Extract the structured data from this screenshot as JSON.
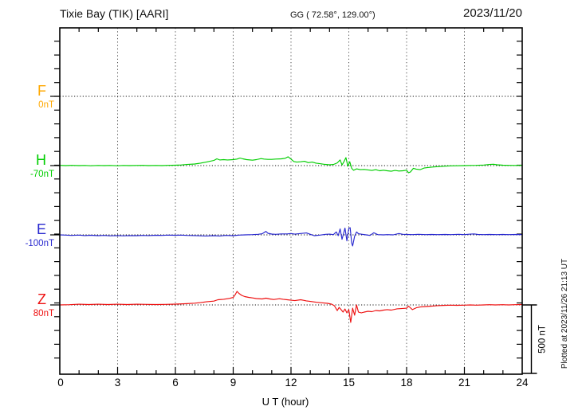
{
  "header": {
    "station_title": "Tixie Bay (TIK)  [AARI]",
    "coordinates": "GG ( 72.58°, 129.00°)",
    "date": "2023/11/20"
  },
  "components": [
    {
      "label": "F",
      "baseline_label": "0nT",
      "color": "#FFA800"
    },
    {
      "label": "H",
      "baseline_label": "-70nT",
      "color": "#00CE00"
    },
    {
      "label": "E",
      "baseline_label": "-100nT",
      "color": "#2828CF"
    },
    {
      "label": "Z",
      "baseline_label": "80nT",
      "color": "#EE1010"
    }
  ],
  "x_axis": {
    "label": "U T (hour)",
    "tick_labels": [
      "0",
      "3",
      "6",
      "9",
      "12",
      "15",
      "18",
      "21",
      "24"
    ]
  },
  "scale_bar": {
    "label": "500 nT"
  },
  "footer_note": "Plotted at 2023/11/26 21:13 UT",
  "chart_data": {
    "type": "line",
    "title": "Tixie Bay (TIK) [AARI] magnetogram 2023/11/20",
    "xlabel": "U T (hour)",
    "x_range": [
      0,
      24
    ],
    "x_ticks": [
      0,
      3,
      6,
      9,
      12,
      15,
      18,
      21,
      24
    ],
    "y_units": "nT",
    "scale_nT_per_division": 500,
    "grid": "dotted vertical every 3h, dotted horizontal at each component baseline",
    "series": [
      {
        "name": "F",
        "color": "#FFA800",
        "baseline_label": "0nT",
        "points": []
      },
      {
        "name": "H",
        "color": "#00CE00",
        "baseline_label": "-70nT",
        "points": [
          [
            0,
            2
          ],
          [
            0.3,
            0
          ],
          [
            0.6,
            2
          ],
          [
            1,
            0
          ],
          [
            1.3,
            1
          ],
          [
            1.6,
            -1
          ],
          [
            2,
            1
          ],
          [
            2.3,
            0
          ],
          [
            2.6,
            1
          ],
          [
            3,
            -1
          ],
          [
            3.3,
            1
          ],
          [
            3.6,
            0
          ],
          [
            4,
            1
          ],
          [
            4.3,
            2
          ],
          [
            4.6,
            0
          ],
          [
            5,
            1
          ],
          [
            5.3,
            0
          ],
          [
            5.6,
            2
          ],
          [
            6,
            3
          ],
          [
            6.3,
            5
          ],
          [
            6.6,
            8
          ],
          [
            7,
            12
          ],
          [
            7.3,
            18
          ],
          [
            7.6,
            26
          ],
          [
            8,
            38
          ],
          [
            8.15,
            50
          ],
          [
            8.3,
            42
          ],
          [
            8.5,
            44
          ],
          [
            8.7,
            42
          ],
          [
            9,
            44
          ],
          [
            9.2,
            48
          ],
          [
            9.35,
            56
          ],
          [
            9.5,
            50
          ],
          [
            9.7,
            44
          ],
          [
            10,
            40
          ],
          [
            10.2,
            44
          ],
          [
            10.45,
            52
          ],
          [
            10.6,
            48
          ],
          [
            10.8,
            46
          ],
          [
            11,
            46
          ],
          [
            11.2,
            48
          ],
          [
            11.5,
            50
          ],
          [
            11.7,
            54
          ],
          [
            11.85,
            65
          ],
          [
            12,
            48
          ],
          [
            12.15,
            30
          ],
          [
            12.3,
            26
          ],
          [
            12.5,
            28
          ],
          [
            12.7,
            32
          ],
          [
            12.9,
            22
          ],
          [
            13.1,
            26
          ],
          [
            13.3,
            18
          ],
          [
            13.5,
            14
          ],
          [
            13.7,
            10
          ],
          [
            14,
            6
          ],
          [
            14.2,
            8
          ],
          [
            14.4,
            20
          ],
          [
            14.55,
            42
          ],
          [
            14.65,
            5
          ],
          [
            14.75,
            30
          ],
          [
            14.85,
            59
          ],
          [
            14.95,
            -5
          ],
          [
            15.05,
            28
          ],
          [
            15.15,
            -20
          ],
          [
            15.25,
            -35
          ],
          [
            15.4,
            -24
          ],
          [
            15.6,
            -30
          ],
          [
            15.8,
            -28
          ],
          [
            16,
            -32
          ],
          [
            16.2,
            -36
          ],
          [
            16.4,
            -30
          ],
          [
            16.6,
            -38
          ],
          [
            16.8,
            -34
          ],
          [
            17,
            -38
          ],
          [
            17.2,
            -42
          ],
          [
            17.4,
            -36
          ],
          [
            17.6,
            -40
          ],
          [
            17.8,
            -38
          ],
          [
            18,
            -34
          ],
          [
            18.1,
            -53
          ],
          [
            18.2,
            -47
          ],
          [
            18.35,
            -20
          ],
          [
            18.5,
            -26
          ],
          [
            18.7,
            -30
          ],
          [
            18.9,
            -18
          ],
          [
            19.1,
            -14
          ],
          [
            19.4,
            -10
          ],
          [
            19.7,
            -7
          ],
          [
            20,
            -4
          ],
          [
            20.3,
            -2
          ],
          [
            20.6,
            -1
          ],
          [
            21,
            0
          ],
          [
            21.3,
            1
          ],
          [
            21.6,
            2
          ],
          [
            22,
            4
          ],
          [
            22.3,
            8
          ],
          [
            22.5,
            10
          ],
          [
            22.7,
            6
          ],
          [
            23,
            3
          ],
          [
            23.3,
            2
          ],
          [
            23.6,
            1
          ],
          [
            24,
            2
          ]
        ]
      },
      {
        "name": "E",
        "color": "#2828CF",
        "baseline_label": "-100nT",
        "points": [
          [
            0,
            0
          ],
          [
            0.3,
            -2
          ],
          [
            0.6,
            -4
          ],
          [
            1,
            -2
          ],
          [
            1.3,
            -5
          ],
          [
            1.6,
            -3
          ],
          [
            2,
            -6
          ],
          [
            2.3,
            -4
          ],
          [
            2.6,
            -7
          ],
          [
            3,
            -5
          ],
          [
            3.3,
            -7
          ],
          [
            3.6,
            -5
          ],
          [
            4,
            -6
          ],
          [
            4.3,
            -4
          ],
          [
            4.6,
            -5
          ],
          [
            5,
            -3
          ],
          [
            5.3,
            -4
          ],
          [
            5.6,
            -2
          ],
          [
            6,
            -3
          ],
          [
            6.3,
            -2
          ],
          [
            6.6,
            -4
          ],
          [
            7,
            -5
          ],
          [
            7.3,
            -7
          ],
          [
            7.6,
            -8
          ],
          [
            8,
            -6
          ],
          [
            8.3,
            -8
          ],
          [
            8.6,
            -4
          ],
          [
            9,
            -6
          ],
          [
            9.3,
            -2
          ],
          [
            9.6,
            0
          ],
          [
            10,
            2
          ],
          [
            10.3,
            4
          ],
          [
            10.5,
            8
          ],
          [
            10.7,
            26
          ],
          [
            10.8,
            12
          ],
          [
            11,
            6
          ],
          [
            11.2,
            4
          ],
          [
            11.5,
            7
          ],
          [
            11.8,
            7
          ],
          [
            12,
            10
          ],
          [
            12.2,
            5
          ],
          [
            12.5,
            10
          ],
          [
            12.8,
            14
          ],
          [
            13,
            4
          ],
          [
            13.2,
            -6
          ],
          [
            13.5,
            -2
          ],
          [
            13.8,
            4
          ],
          [
            14,
            5
          ],
          [
            14.2,
            2
          ],
          [
            14.35,
            22
          ],
          [
            14.45,
            -6
          ],
          [
            14.55,
            44
          ],
          [
            14.65,
            -33
          ],
          [
            14.8,
            50
          ],
          [
            14.9,
            -44
          ],
          [
            15,
            48
          ],
          [
            15.07,
            53
          ],
          [
            15.15,
            -60
          ],
          [
            15.2,
            -82
          ],
          [
            15.3,
            -10
          ],
          [
            15.4,
            22
          ],
          [
            15.5,
            8
          ],
          [
            15.7,
            4
          ],
          [
            15.9,
            0
          ],
          [
            16.1,
            -4
          ],
          [
            16.3,
            15
          ],
          [
            16.5,
            2
          ],
          [
            16.8,
            0
          ],
          [
            17,
            2
          ],
          [
            17.3,
            0
          ],
          [
            17.6,
            10
          ],
          [
            17.8,
            4
          ],
          [
            18,
            3
          ],
          [
            18.3,
            2
          ],
          [
            18.6,
            4
          ],
          [
            19,
            2
          ],
          [
            19.3,
            3
          ],
          [
            19.6,
            2
          ],
          [
            20,
            3
          ],
          [
            20.3,
            2
          ],
          [
            20.7,
            4
          ],
          [
            21,
            2
          ],
          [
            21.3,
            5
          ],
          [
            21.5,
            7
          ],
          [
            21.7,
            3
          ],
          [
            22,
            2
          ],
          [
            22.3,
            3
          ],
          [
            22.7,
            2
          ],
          [
            23,
            3
          ],
          [
            23.3,
            2
          ],
          [
            23.7,
            3
          ],
          [
            24,
            2
          ]
        ]
      },
      {
        "name": "Z",
        "color": "#EE1010",
        "baseline_label": "80nT",
        "points": [
          [
            0,
            0
          ],
          [
            0.5,
            2
          ],
          [
            1,
            5
          ],
          [
            1.5,
            3
          ],
          [
            2,
            5
          ],
          [
            2.5,
            3
          ],
          [
            3,
            5
          ],
          [
            3.5,
            3
          ],
          [
            4,
            5
          ],
          [
            4.5,
            4
          ],
          [
            5,
            3
          ],
          [
            5.5,
            4
          ],
          [
            6,
            6
          ],
          [
            6.5,
            9
          ],
          [
            7,
            13
          ],
          [
            7.3,
            17
          ],
          [
            7.6,
            23
          ],
          [
            8,
            28
          ],
          [
            8.2,
            38
          ],
          [
            8.5,
            42
          ],
          [
            8.8,
            48
          ],
          [
            9,
            55
          ],
          [
            9.1,
            75
          ],
          [
            9.2,
            100
          ],
          [
            9.3,
            85
          ],
          [
            9.45,
            70
          ],
          [
            9.6,
            62
          ],
          [
            9.8,
            56
          ],
          [
            10,
            52
          ],
          [
            10.2,
            47
          ],
          [
            10.5,
            44
          ],
          [
            10.7,
            50
          ],
          [
            10.9,
            44
          ],
          [
            11.1,
            40
          ],
          [
            11.4,
            46
          ],
          [
            11.6,
            42
          ],
          [
            11.8,
            38
          ],
          [
            12,
            35
          ],
          [
            12.2,
            32
          ],
          [
            12.5,
            38
          ],
          [
            12.8,
            30
          ],
          [
            13,
            26
          ],
          [
            13.3,
            20
          ],
          [
            13.6,
            16
          ],
          [
            13.9,
            12
          ],
          [
            14.1,
            6
          ],
          [
            14.25,
            -6
          ],
          [
            14.4,
            -42
          ],
          [
            14.5,
            -18
          ],
          [
            14.6,
            -35
          ],
          [
            14.7,
            -53
          ],
          [
            14.8,
            -30
          ],
          [
            14.9,
            -59
          ],
          [
            15,
            -35
          ],
          [
            15.1,
            -129
          ],
          [
            15.2,
            -24
          ],
          [
            15.3,
            -76
          ],
          [
            15.4,
            0
          ],
          [
            15.5,
            -53
          ],
          [
            15.65,
            -59
          ],
          [
            15.8,
            -53
          ],
          [
            16,
            -47
          ],
          [
            16.2,
            -50
          ],
          [
            16.4,
            -41
          ],
          [
            16.6,
            -44
          ],
          [
            16.8,
            -38
          ],
          [
            17,
            -35
          ],
          [
            17.2,
            -38
          ],
          [
            17.5,
            -29
          ],
          [
            17.8,
            -26
          ],
          [
            18,
            -24
          ],
          [
            18.1,
            -9
          ],
          [
            18.3,
            -35
          ],
          [
            18.5,
            -21
          ],
          [
            18.7,
            -15
          ],
          [
            19,
            -12
          ],
          [
            19.3,
            -9
          ],
          [
            19.6,
            -5
          ],
          [
            20,
            -3
          ],
          [
            20.3,
            -2
          ],
          [
            20.6,
            -3
          ],
          [
            21,
            -2
          ],
          [
            21.3,
            0
          ],
          [
            21.6,
            -2
          ],
          [
            22,
            0
          ],
          [
            22.3,
            2
          ],
          [
            22.6,
            0
          ],
          [
            23,
            2
          ],
          [
            23.3,
            0
          ],
          [
            23.6,
            2
          ],
          [
            24,
            3
          ]
        ]
      }
    ],
    "points_format": "[UT hour, deviation in nT from that component's labeled baseline]"
  }
}
